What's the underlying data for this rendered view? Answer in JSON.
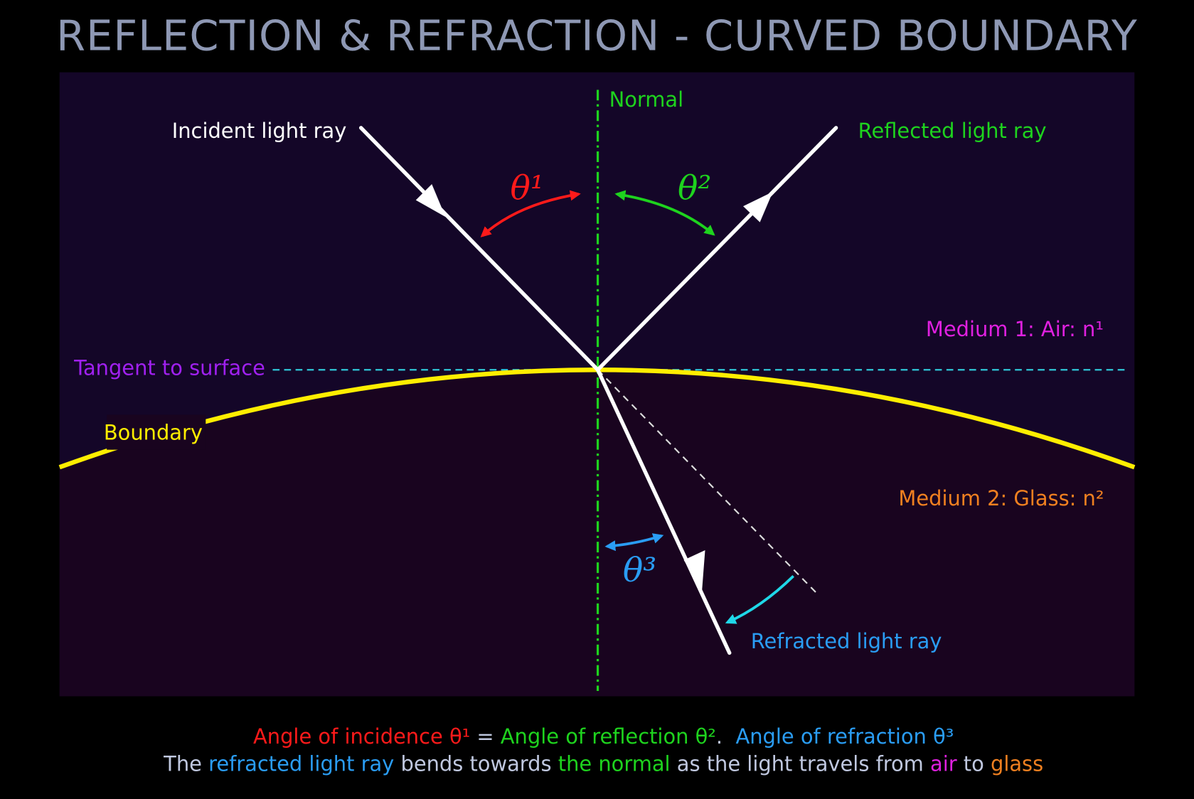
{
  "title": "REFLECTION & REFRACTION - CURVED BOUNDARY",
  "labels": {
    "incident": "Incident light ray",
    "normal": "Normal",
    "reflected": "Reflected light ray",
    "medium1": "Medium 1: Air: n¹",
    "tangent": "Tangent to surface",
    "boundary": "Boundary",
    "medium2": "Medium 2: Glass: n²",
    "refracted": "Refracted light ray",
    "theta1": "θ¹",
    "theta2": "θ²",
    "theta3": "θ³"
  },
  "caption": {
    "line1": [
      "Angle of incidence θ¹",
      " = ",
      "Angle of reflection θ²",
      ".  ",
      "Angle of refraction θ³"
    ],
    "line2": [
      "The ",
      "refracted light ray",
      " bends towards ",
      "the normal",
      " as the light travels from ",
      "air",
      " to ",
      "glass"
    ]
  }
}
